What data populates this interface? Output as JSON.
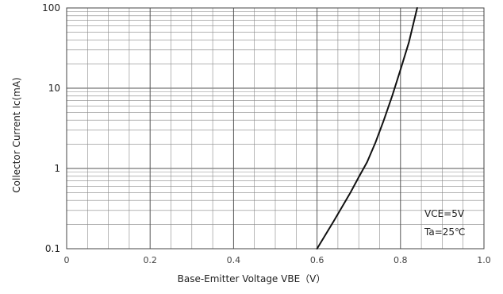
{
  "chart_data": {
    "type": "line",
    "ylabel": "Collector Current   Ic(mA)",
    "xlabel": "Base-Emitter Voltage   VBE（V）",
    "y_scale": "log",
    "ylim": [
      0.1,
      100
    ],
    "xlim": [
      0,
      1.0
    ],
    "y_ticks": [
      "100",
      "10",
      "1",
      "0.1"
    ],
    "x_ticks": [
      "0",
      "0.2",
      "0.4",
      "0.6",
      "0.8",
      "1.0"
    ],
    "annotations": [
      "VCE=5V",
      "Ta=25℃"
    ],
    "series": [
      {
        "x": [
          0.6,
          0.64,
          0.68,
          0.7,
          0.72,
          0.74,
          0.76,
          0.78,
          0.8,
          0.82,
          0.84
        ],
        "y": [
          0.1,
          0.22,
          0.5,
          0.78,
          1.2,
          2.1,
          4.0,
          8.0,
          17,
          37,
          100
        ]
      }
    ],
    "grid": true,
    "legend": "none"
  }
}
